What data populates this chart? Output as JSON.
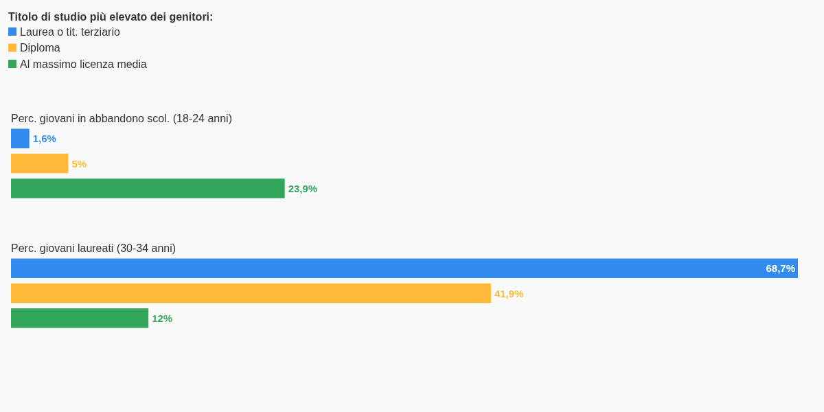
{
  "chart_data": {
    "type": "bar",
    "orientation": "horizontal",
    "legend": "top left",
    "legend_title": "Titolo di studio più elevato dei genitori:",
    "categories": [
      "Perc. giovani in abbandono scol. (18-24 anni)",
      "Perc. giovani laureati (30-34 anni)"
    ],
    "series": [
      {
        "name": "Laurea o tit. terziario",
        "color": "#338bee",
        "values": [
          1.6,
          68.7
        ],
        "value_labels": [
          "1,6%",
          "68,7%"
        ]
      },
      {
        "name": "Diploma",
        "color": "#ffb938",
        "values": [
          5,
          41.9
        ],
        "value_labels": [
          "5%",
          "41,9%"
        ]
      },
      {
        "name": "Al massimo licenza media",
        "color": "#32a65a",
        "values": [
          23.9,
          12
        ],
        "value_labels": [
          "23,9%",
          "12%"
        ]
      }
    ]
  }
}
